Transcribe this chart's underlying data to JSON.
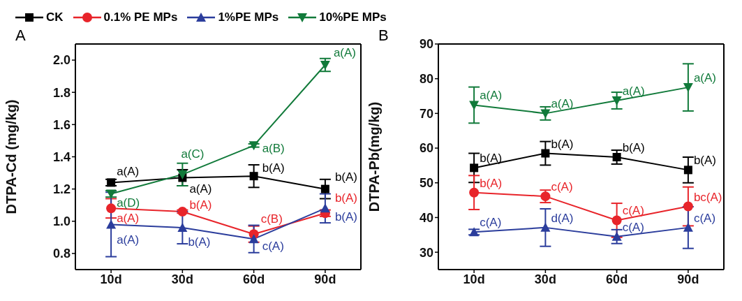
{
  "chart_data": [
    {
      "type": "line",
      "annotations": [
        "A"
      ],
      "ylabel": "DTPA-Cd (mg/kg)",
      "categories": [
        "10d",
        "30d",
        "60d",
        "90d"
      ],
      "ylim": [
        0.7,
        2.1
      ],
      "yticks": [
        0.8,
        {
          "value": 1.0,
          "label": "1.0"
        },
        1.2,
        1.4,
        1.6,
        1.8,
        {
          "value": 2.0,
          "label": "2.0"
        }
      ],
      "legend": "top",
      "series": [
        {
          "name": "CK",
          "color": "#000000",
          "marker": "square",
          "values": [
            1.24,
            1.27,
            1.28,
            1.2
          ],
          "errors": [
            0.02,
            0.05,
            0.07,
            0.06
          ],
          "value_labels": [
            "a(A)",
            "a(A)",
            "b(A)",
            "b(A)"
          ]
        },
        {
          "name": "0.1% PE MPs",
          "color": "#e8242a",
          "marker": "circle",
          "values": [
            1.08,
            1.06,
            0.92,
            1.05
          ],
          "errors": [
            0.06,
            0.01,
            0.05,
            0.02
          ],
          "value_labels": [
            "a(A)",
            "b(A)",
            "c(B)",
            "b(A)"
          ]
        },
        {
          "name": "1%PE MPs",
          "color": "#2b3d9c",
          "marker": "triangle",
          "values": [
            0.98,
            0.96,
            0.89,
            1.08
          ],
          "errors": [
            0.2,
            0.1,
            0.085,
            0.09
          ],
          "value_labels": [
            "a(A)",
            "b(A)",
            "c(A)",
            "b(A)"
          ]
        },
        {
          "name": "10%PE MPs",
          "color": "#117a3a",
          "marker": "triangle-down",
          "values": [
            1.17,
            1.29,
            1.47,
            1.97
          ],
          "errors": [
            0.02,
            0.07,
            0.01,
            0.04
          ],
          "value_labels": [
            "a(D)",
            "a(C)",
            "a(B)",
            "a(A)"
          ]
        }
      ]
    },
    {
      "type": "line",
      "annotations": [
        "B"
      ],
      "ylabel": "DTPA-Pb(mg/kg)",
      "categories": [
        "10d",
        "30d",
        "60d",
        "90d"
      ],
      "ylim": [
        25,
        90
      ],
      "yticks": [
        30,
        40,
        50,
        60,
        70,
        80,
        90
      ],
      "series": [
        {
          "color": "#000000",
          "marker": "square",
          "values": [
            54.3,
            58.5,
            57.4,
            53.7
          ],
          "errors": [
            4.2,
            3.4,
            2,
            3.7
          ],
          "value_labels": [
            "b(A)",
            "b(A)",
            "b(A)",
            "b(A)"
          ]
        },
        {
          "color": "#e8242a",
          "marker": "circle",
          "values": [
            47.2,
            46.1,
            39.2,
            43.2
          ],
          "errors": [
            4.9,
            1.8,
            4.9,
            5.6
          ],
          "value_labels": [
            "b(A)",
            "c(A)",
            "c(A)",
            "bc(A)"
          ]
        },
        {
          "color": "#2b3d9c",
          "marker": "triangle",
          "values": [
            35.8,
            37.1,
            34.5,
            37.1
          ],
          "errors": [
            0.8,
            5.4,
            2,
            6
          ],
          "value_labels": [
            "c(A)",
            "d(A)",
            "c(A)",
            "c(A)"
          ]
        },
        {
          "color": "#117a3a",
          "marker": "triangle-down",
          "values": [
            72.4,
            70,
            73.7,
            77.5
          ],
          "errors": [
            5.2,
            1.9,
            2.4,
            6.8
          ],
          "value_labels": [
            "a(A)",
            "a(A)",
            "a(A)",
            "a(A)"
          ]
        }
      ]
    }
  ]
}
